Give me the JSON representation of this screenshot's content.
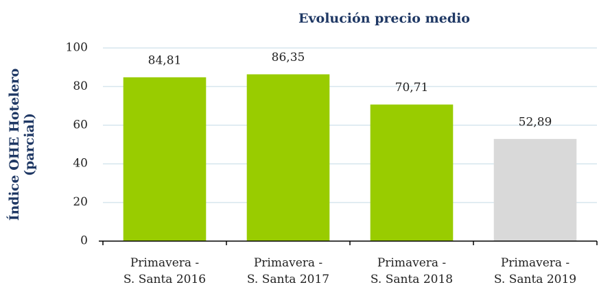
{
  "chart_data": {
    "type": "bar",
    "title": "Evolución precio medio",
    "y_label": "Índice OHE Hotelero\n(parcial)",
    "categories": [
      "Primavera -\nS. Santa 2016",
      "Primavera -\nS. Santa 2017",
      "Primavera -\nS. Santa 2018",
      "Primavera -\nS. Santa 2019"
    ],
    "values": [
      84.81,
      86.35,
      70.71,
      52.89
    ],
    "value_labels": [
      "84,81",
      "86,35",
      "70,71",
      "52,89"
    ],
    "colors": [
      "#99cc00",
      "#99cc00",
      "#99cc00",
      "#d9d9d9"
    ],
    "ylim": [
      0,
      100
    ],
    "yticks": [
      0,
      20,
      40,
      60,
      80,
      100
    ],
    "grid": true
  }
}
